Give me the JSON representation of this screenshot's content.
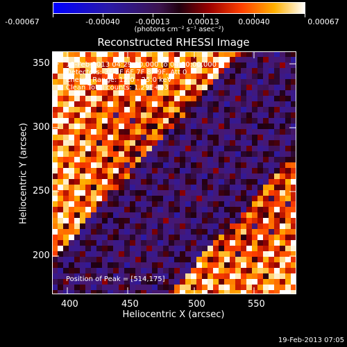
{
  "colorbar": {
    "tick_labels": [
      "-0.00067",
      "-0.00040",
      "-0.00013",
      "0.00013",
      "0.00040",
      "0.00067"
    ],
    "units": "(photons cm⁻² s⁻¹ asec⁻²)"
  },
  "title": "Reconstructed RHESSI Image",
  "info": {
    "line1": "19-Feb-2013 04:29:00.000 to 04:30:00.000",
    "line2": "Detectors: 3F 5F 6F 7F 8F 9F, Att 0",
    "line3": "Energy Range: 12.0 - 25.0 keV",
    "line4": "Clean     Total counts: 1.29E+03"
  },
  "peak": "Position of Peak = [514,175]",
  "axes": {
    "xlabel": "Heliocentric X (arcsec)",
    "ylabel": "Heliocentric Y (arcsec)",
    "xticks": [
      "400",
      "450",
      "500",
      "550"
    ],
    "yticks": [
      "200",
      "250",
      "300",
      "350"
    ]
  },
  "footer": "19-Feb-2013 07:05"
}
